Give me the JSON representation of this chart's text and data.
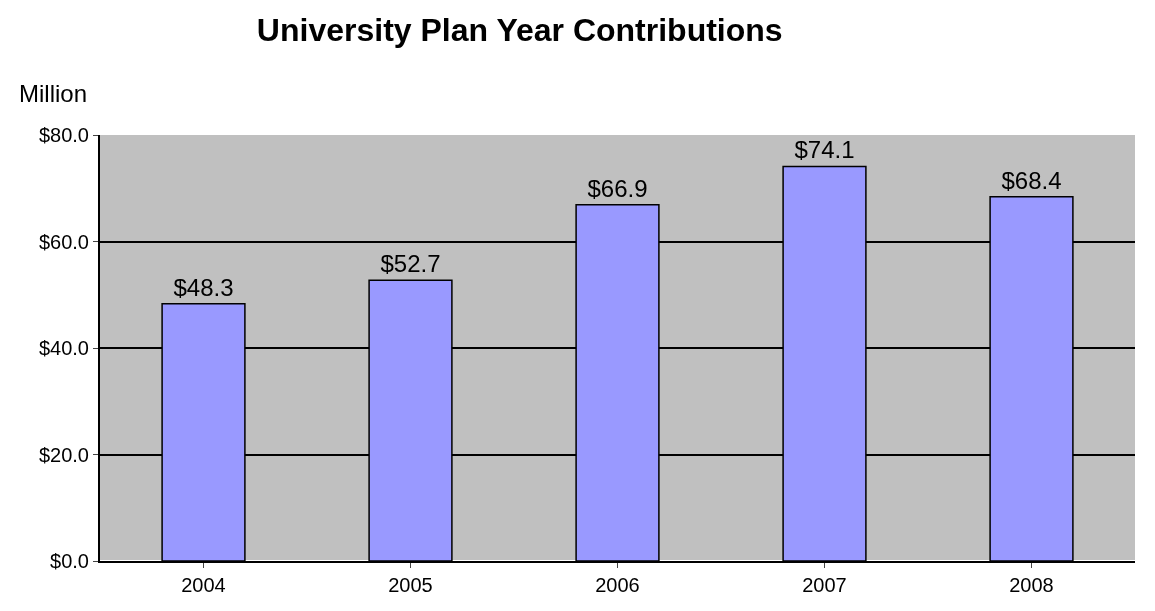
{
  "chart_data": {
    "type": "bar",
    "title": "University Plan Year Contributions",
    "ylabel": "Million",
    "categories": [
      "2004",
      "2005",
      "2006",
      "2007",
      "2008"
    ],
    "values": [
      48.3,
      52.7,
      66.9,
      74.1,
      68.4
    ],
    "value_labels": [
      "$48.3",
      "$52.7",
      "$66.9",
      "$74.1",
      "$68.4"
    ],
    "color": "#9999ff",
    "ylim": [
      0,
      80
    ],
    "yticks": [
      {
        "value": 0,
        "label": "$0.0"
      },
      {
        "value": 20,
        "label": "$20.0"
      },
      {
        "value": 40,
        "label": "$40.0"
      },
      {
        "value": 60,
        "label": "$60.0"
      },
      {
        "value": 80,
        "label": "$80.0"
      }
    ],
    "grid": "y",
    "legend": false
  }
}
